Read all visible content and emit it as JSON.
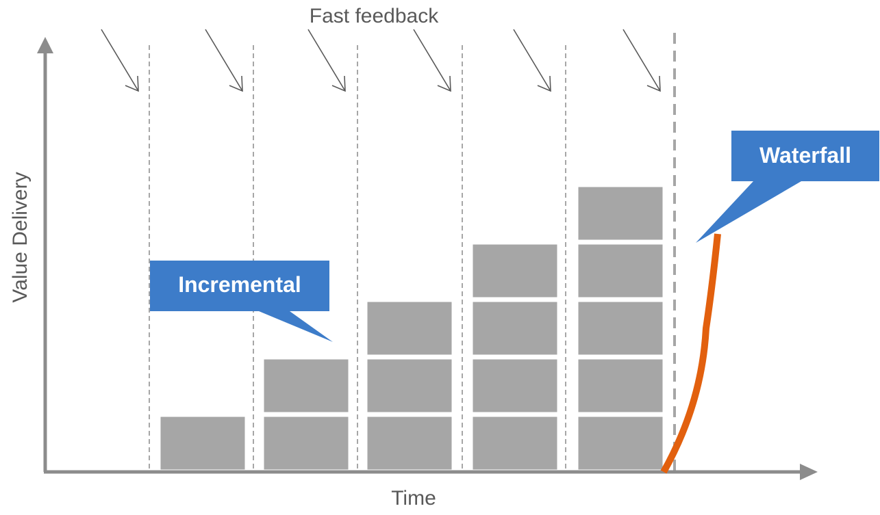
{
  "labels": {
    "top": "Fast feedback",
    "y_axis": "Value Delivery",
    "x_axis": "Time"
  },
  "callouts": {
    "incremental": "Incremental",
    "waterfall": "Waterfall"
  },
  "bar_stacks": [
    1,
    2,
    3,
    4,
    5
  ],
  "feedback_arrow_count": 6,
  "colors": {
    "axis": "#8c8c8c",
    "block": "#a6a6a6",
    "divider": "#a6a6a6",
    "arrow": "#595959",
    "callout": "#3d7cc9",
    "waterfall": "#e2600e",
    "text": "#595959"
  }
}
